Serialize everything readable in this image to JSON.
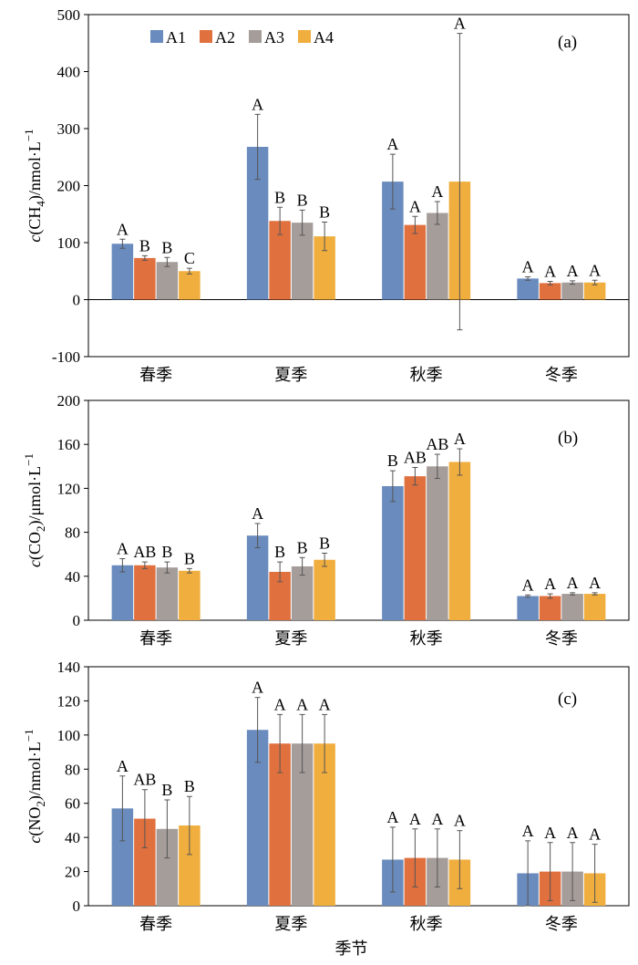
{
  "colors": [
    "#6a8bbd",
    "#e0703e",
    "#a59d9a",
    "#f0ae3e"
  ],
  "legend": [
    "A1",
    "A2",
    "A3",
    "A4"
  ],
  "x_title": "季节",
  "chart_data": [
    {
      "type": "bar",
      "panel": "(a)",
      "ylabel": "c(CH4)/nmol·L-1",
      "ylim": [
        -100,
        500
      ],
      "yticks": [
        -100,
        0,
        100,
        200,
        300,
        400,
        500
      ],
      "categories": [
        "春季",
        "夏季",
        "秋季",
        "冬季"
      ],
      "series": [
        {
          "name": "A1",
          "values": [
            98,
            268,
            207,
            37
          ],
          "errors": [
            8,
            57,
            48,
            3
          ],
          "letters": [
            "A",
            "A",
            "A",
            "A"
          ]
        },
        {
          "name": "A2",
          "values": [
            73,
            138,
            131,
            29
          ],
          "errors": [
            4,
            24,
            15,
            3
          ],
          "letters": [
            "B",
            "B",
            "A",
            "A"
          ]
        },
        {
          "name": "A3",
          "values": [
            66,
            135,
            152,
            30
          ],
          "errors": [
            8,
            22,
            20,
            3
          ],
          "letters": [
            "B",
            "B",
            "A",
            "A"
          ]
        },
        {
          "name": "A4",
          "values": [
            50,
            111,
            207,
            30
          ],
          "errors": [
            5,
            25,
            260,
            4
          ],
          "letters": [
            "C",
            "B",
            "A",
            "A"
          ]
        }
      ]
    },
    {
      "type": "bar",
      "panel": "(b)",
      "ylabel": "c(CO2)/μmol·L-1",
      "ylim": [
        0,
        200
      ],
      "yticks": [
        0,
        40,
        80,
        120,
        160,
        200
      ],
      "categories": [
        "春季",
        "夏季",
        "秋季",
        "冬季"
      ],
      "series": [
        {
          "name": "A1",
          "values": [
            50,
            77,
            122,
            22
          ],
          "errors": [
            6,
            11,
            14,
            1
          ],
          "letters": [
            "A",
            "A",
            "B",
            "A"
          ]
        },
        {
          "name": "A2",
          "values": [
            50,
            44,
            131,
            22
          ],
          "errors": [
            3,
            9,
            8,
            2
          ],
          "letters": [
            "AB",
            "B",
            "AB",
            "A"
          ]
        },
        {
          "name": "A3",
          "values": [
            48,
            49,
            140,
            24
          ],
          "errors": [
            5,
            8,
            11,
            1
          ],
          "letters": [
            "B",
            "B",
            "AB",
            "A"
          ]
        },
        {
          "name": "A4",
          "values": [
            45,
            55,
            144,
            24
          ],
          "errors": [
            2,
            6,
            12,
            1
          ],
          "letters": [
            "B",
            "B",
            "A",
            "A"
          ]
        }
      ]
    },
    {
      "type": "bar",
      "panel": "(c)",
      "ylabel": "c(NO2)/nmol·L-1",
      "ylim": [
        0,
        140
      ],
      "yticks": [
        0,
        20,
        40,
        60,
        80,
        100,
        120,
        140
      ],
      "categories": [
        "春季",
        "夏季",
        "秋季",
        "冬季"
      ],
      "series": [
        {
          "name": "A1",
          "values": [
            57,
            103,
            27,
            19
          ],
          "errors": [
            19,
            19,
            19,
            19
          ],
          "letters": [
            "A",
            "A",
            "A",
            "A"
          ]
        },
        {
          "name": "A2",
          "values": [
            51,
            95,
            28,
            20
          ],
          "errors": [
            17,
            17,
            17,
            17
          ],
          "letters": [
            "AB",
            "A",
            "A",
            "A"
          ]
        },
        {
          "name": "A3",
          "values": [
            45,
            95,
            28,
            20
          ],
          "errors": [
            17,
            17,
            17,
            17
          ],
          "letters": [
            "B",
            "A",
            "A",
            "A"
          ]
        },
        {
          "name": "A4",
          "values": [
            47,
            95,
            27,
            19
          ],
          "errors": [
            17,
            17,
            17,
            17
          ],
          "letters": [
            "B",
            "A",
            "A",
            "A"
          ]
        }
      ]
    }
  ]
}
